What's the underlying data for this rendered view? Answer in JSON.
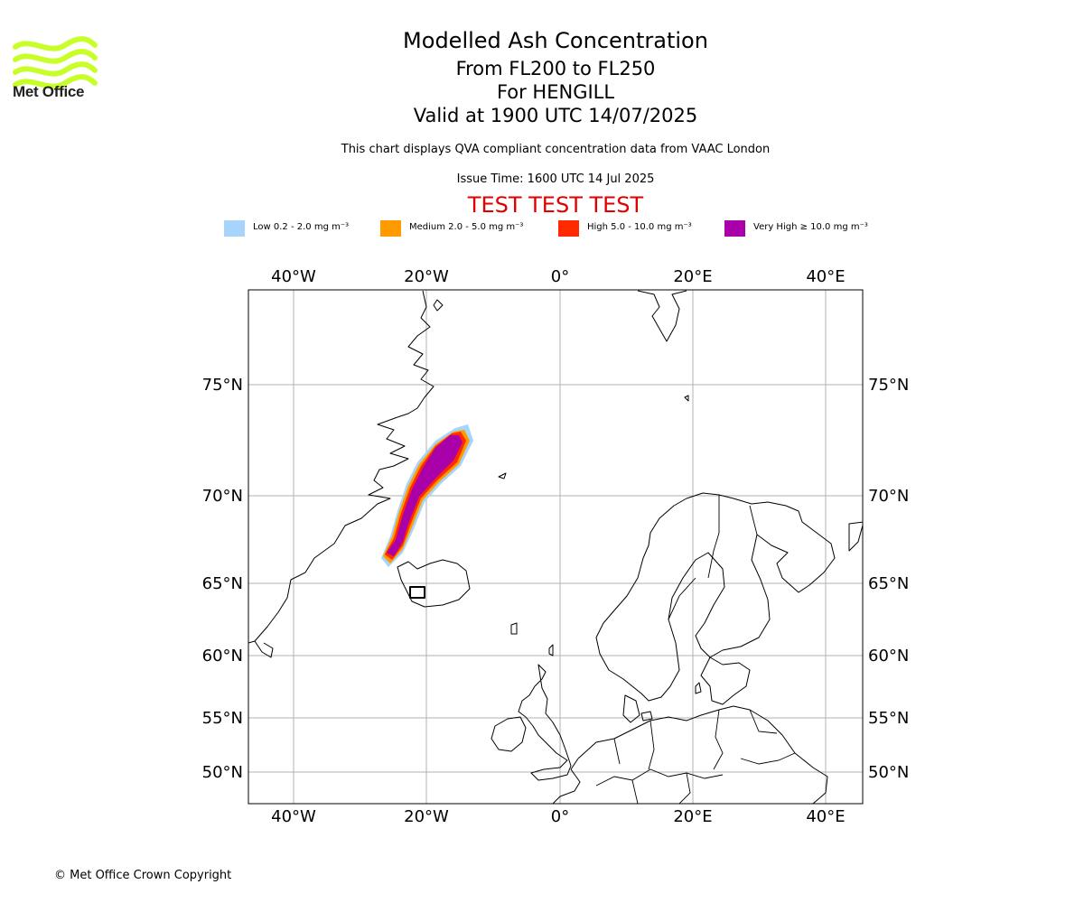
{
  "brand": {
    "logo_text": "Met Office",
    "logo_color": "#c8ff2a"
  },
  "header": {
    "title": "Modelled Ash Concentration",
    "subtitle_1": "From FL200 to FL250",
    "subtitle_2": "For HENGILL",
    "subtitle_3": "Valid at 1900 UTC 14/07/2025",
    "note": "This chart displays QVA compliant concentration data from VAAC London",
    "issue_time": "Issue Time: 1600 UTC 14 Jul 2025",
    "test_banner": "TEST TEST TEST",
    "test_color": "#e00000"
  },
  "legend": [
    {
      "label": "Low 0.2 - 2.0 mg m⁻³",
      "color": "#a6d4fa"
    },
    {
      "label": "Medium 2.0 - 5.0 mg m⁻³",
      "color": "#ff9a00"
    },
    {
      "label": "High 5.0 - 10.0 mg m⁻³",
      "color": "#ff2a00"
    },
    {
      "label": "Very High ≥ 10.0 mg m⁻³",
      "color": "#aa00aa"
    }
  ],
  "map": {
    "lon_ticks": [
      "40°W",
      "20°W",
      "0°",
      "20°E",
      "40°E"
    ],
    "lat_ticks": [
      "75°N",
      "70°N",
      "65°N",
      "60°N",
      "55°N",
      "50°N"
    ],
    "grid": true,
    "plume_source": "HENGILL"
  },
  "footer": {
    "copyright": "© Met Office Crown Copyright"
  }
}
